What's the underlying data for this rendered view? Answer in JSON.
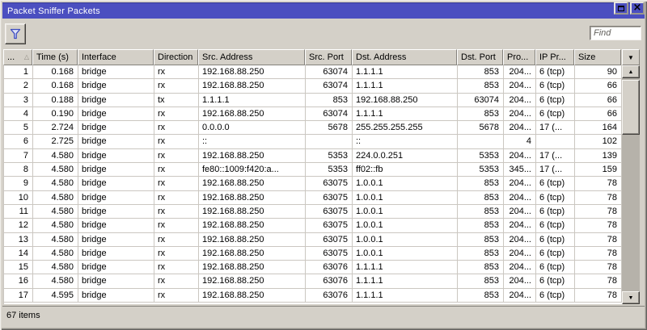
{
  "window": {
    "title": "Packet Sniffer Packets"
  },
  "toolbar": {
    "find_placeholder": "Find"
  },
  "icons": {
    "filter": "funnel",
    "maximize": "square",
    "close": "×",
    "sort_asc": "△",
    "column_select": "▼",
    "scroll_up": "▲",
    "scroll_down": "▼"
  },
  "colors": {
    "titlebar": "#4b4fc0",
    "window_bg": "#d4d0c8",
    "funnel_stroke": "#3d4cc0",
    "grid_line": "#cbc7c1"
  },
  "table": {
    "columns": [
      "...",
      "Time (s)",
      "Interface",
      "Direction",
      "Src. Address",
      "Src. Port",
      "Dst. Address",
      "Dst. Port",
      "Pro...",
      "IP Pr...",
      "Size"
    ],
    "rows": [
      [
        "1",
        "0.168",
        "bridge",
        "rx",
        "192.168.88.250",
        "63074",
        "1.1.1.1",
        "853",
        "204...",
        "6 (tcp)",
        "90"
      ],
      [
        "2",
        "0.168",
        "bridge",
        "rx",
        "192.168.88.250",
        "63074",
        "1.1.1.1",
        "853",
        "204...",
        "6 (tcp)",
        "66"
      ],
      [
        "3",
        "0.188",
        "bridge",
        "tx",
        "1.1.1.1",
        "853",
        "192.168.88.250",
        "63074",
        "204...",
        "6 (tcp)",
        "66"
      ],
      [
        "4",
        "0.190",
        "bridge",
        "rx",
        "192.168.88.250",
        "63074",
        "1.1.1.1",
        "853",
        "204...",
        "6 (tcp)",
        "66"
      ],
      [
        "5",
        "2.724",
        "bridge",
        "rx",
        "0.0.0.0",
        "5678",
        "255.255.255.255",
        "5678",
        "204...",
        "17 (...",
        "164"
      ],
      [
        "6",
        "2.725",
        "bridge",
        "rx",
        "::",
        "",
        "::",
        "",
        "4",
        "",
        "102"
      ],
      [
        "7",
        "4.580",
        "bridge",
        "rx",
        "192.168.88.250",
        "5353",
        "224.0.0.251",
        "5353",
        "204...",
        "17 (...",
        "139"
      ],
      [
        "8",
        "4.580",
        "bridge",
        "rx",
        "fe80::1009:f420:a...",
        "5353",
        "ff02::fb",
        "5353",
        "345...",
        "17 (...",
        "159"
      ],
      [
        "9",
        "4.580",
        "bridge",
        "rx",
        "192.168.88.250",
        "63075",
        "1.0.0.1",
        "853",
        "204...",
        "6 (tcp)",
        "78"
      ],
      [
        "10",
        "4.580",
        "bridge",
        "rx",
        "192.168.88.250",
        "63075",
        "1.0.0.1",
        "853",
        "204...",
        "6 (tcp)",
        "78"
      ],
      [
        "11",
        "4.580",
        "bridge",
        "rx",
        "192.168.88.250",
        "63075",
        "1.0.0.1",
        "853",
        "204...",
        "6 (tcp)",
        "78"
      ],
      [
        "12",
        "4.580",
        "bridge",
        "rx",
        "192.168.88.250",
        "63075",
        "1.0.0.1",
        "853",
        "204...",
        "6 (tcp)",
        "78"
      ],
      [
        "13",
        "4.580",
        "bridge",
        "rx",
        "192.168.88.250",
        "63075",
        "1.0.0.1",
        "853",
        "204...",
        "6 (tcp)",
        "78"
      ],
      [
        "14",
        "4.580",
        "bridge",
        "rx",
        "192.168.88.250",
        "63075",
        "1.0.0.1",
        "853",
        "204...",
        "6 (tcp)",
        "78"
      ],
      [
        "15",
        "4.580",
        "bridge",
        "rx",
        "192.168.88.250",
        "63076",
        "1.1.1.1",
        "853",
        "204...",
        "6 (tcp)",
        "78"
      ],
      [
        "16",
        "4.580",
        "bridge",
        "rx",
        "192.168.88.250",
        "63076",
        "1.1.1.1",
        "853",
        "204...",
        "6 (tcp)",
        "78"
      ],
      [
        "17",
        "4.595",
        "bridge",
        "rx",
        "192.168.88.250",
        "63076",
        "1.1.1.1",
        "853",
        "204...",
        "6 (tcp)",
        "78"
      ]
    ]
  },
  "footer": {
    "items_text": "67 items"
  }
}
